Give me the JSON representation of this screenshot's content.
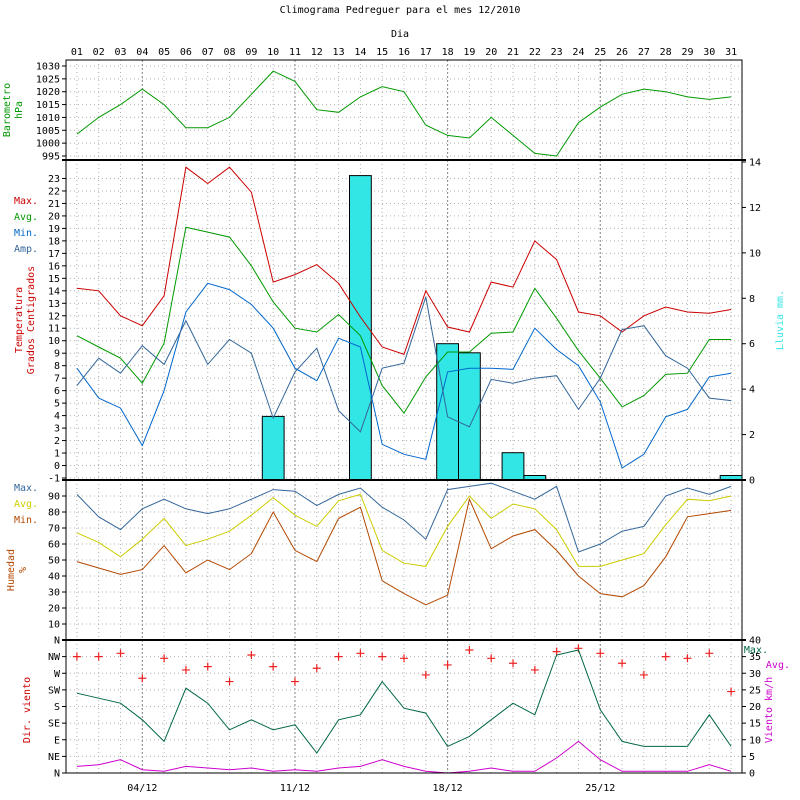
{
  "chart_data": {
    "type": "line",
    "title": "Climograma Pedreguer para el mes 12/2010",
    "day_axis_label": "Dia",
    "days": [
      "01",
      "02",
      "03",
      "04",
      "05",
      "06",
      "07",
      "08",
      "09",
      "10",
      "11",
      "12",
      "13",
      "14",
      "15",
      "16",
      "17",
      "18",
      "19",
      "20",
      "21",
      "22",
      "23",
      "24",
      "25",
      "26",
      "27",
      "28",
      "29",
      "30",
      "31"
    ],
    "date_ticks": [
      "04/12",
      "11/12",
      "18/12",
      "25/12"
    ],
    "colors": {
      "red": "#cc0000",
      "green": "#009900",
      "blue": "#0066cc",
      "steel": "#336699",
      "cyan": "#33e6e6",
      "olive": "#cccc00",
      "brown": "#b34700",
      "teal": "#006644",
      "magenta": "#cc00cc",
      "cross": "#ee2222"
    },
    "panels": {
      "barometer": {
        "ylabel": [
          "Barometro",
          "hPa"
        ],
        "ylim": [
          995,
          1030
        ],
        "ticks": [
          995,
          1000,
          1005,
          1010,
          1015,
          1020,
          1025,
          1030
        ],
        "series": [
          {
            "values": [
              1003.5,
              1010,
              1015,
              1021,
              1015,
              1006,
              1006,
              1010,
              1019,
              1028,
              1024,
              1013,
              1012,
              1018,
              1022,
              1020,
              1007,
              1003,
              1002,
              1010,
              1003,
              996,
              995,
              1008,
              1014,
              1019,
              1021,
              1020,
              1018,
              1017,
              1018
            ]
          }
        ]
      },
      "temperature": {
        "ylabel": [
          "Temperatura",
          "Grados Centigrados"
        ],
        "ylabel2": "Lluvia mm.",
        "ylim": [
          -1,
          24
        ],
        "ticks": [
          -1,
          0,
          1,
          2,
          3,
          4,
          5,
          6,
          7,
          8,
          9,
          10,
          11,
          12,
          13,
          14,
          15,
          16,
          17,
          18,
          19,
          20,
          21,
          22,
          23
        ],
        "rain_lim": [
          0,
          14
        ],
        "rain_ticks": [
          0,
          2,
          4,
          6,
          8,
          10,
          12,
          14
        ],
        "legend": [
          "Max.",
          "Avg.",
          "Min.",
          "Amp."
        ],
        "series": [
          {
            "name": "Max.",
            "values": [
              14.2,
              14,
              12,
              11.2,
              13.6,
              23.9,
              22.6,
              23.9,
              21.9,
              14.7,
              15.3,
              16.1,
              14.6,
              11.9,
              9.5,
              8.9,
              14,
              11.1,
              10.7,
              14.7,
              14.3,
              18,
              16.5,
              12.3,
              12,
              10.7,
              12,
              12.7,
              12.3,
              12.2,
              12.5
            ]
          },
          {
            "name": "Avg.",
            "values": [
              10.4,
              9.5,
              8.6,
              6.6,
              9.8,
              19.1,
              18.7,
              18.3,
              16,
              13.1,
              11,
              10.7,
              12.1,
              10.4,
              6.4,
              4.2,
              7.1,
              9.1,
              9.1,
              10.6,
              10.7,
              14.2,
              11.8,
              9.2,
              7,
              4.7,
              5.6,
              7.3,
              7.4,
              10.1,
              10.1
            ]
          },
          {
            "name": "Min.",
            "values": [
              7.8,
              5.4,
              4.6,
              1.6,
              6,
              12.3,
              14.6,
              14.1,
              12.9,
              11,
              7.8,
              6.8,
              10.2,
              9.5,
              1.7,
              0.9,
              0.5,
              7.5,
              7.8,
              7.8,
              7.7,
              11,
              9.3,
              8,
              5.1,
              -0.2,
              0.9,
              3.9,
              4.5,
              7.1,
              7.4
            ]
          },
          {
            "name": "Amp.",
            "values": [
              6.4,
              8.6,
              7.4,
              9.6,
              8.1,
              11.6,
              8.1,
              10.1,
              9,
              3.8,
              7.5,
              9.4,
              4.4,
              2.7,
              7.8,
              8.2,
              13.5,
              3.9,
              3.1,
              6.9,
              6.6,
              7,
              7.2,
              4.5,
              7,
              10.9,
              11.2,
              8.8,
              7.8,
              5.4,
              5.2
            ]
          }
        ],
        "rain": {
          "values": [
            0,
            0,
            0,
            0,
            0,
            0,
            0,
            0,
            0,
            2.8,
            0,
            0,
            0,
            13.4,
            0,
            0,
            0,
            6,
            5.6,
            0,
            1.2,
            0.2,
            0,
            0,
            0,
            0,
            0,
            0,
            0,
            0,
            0.2
          ]
        }
      },
      "humidity": {
        "ylabel": [
          "Humedad",
          "%"
        ],
        "ylim": [
          0,
          100
        ],
        "ticks": [
          10,
          20,
          30,
          40,
          50,
          60,
          70,
          80,
          90
        ],
        "legend": [
          "Max.",
          "Avg.",
          "Min."
        ],
        "series": [
          {
            "name": "Max.",
            "values": [
              91,
              77,
              69,
              82,
              88,
              82,
              79,
              82,
              88,
              94,
              93,
              84,
              91,
              95,
              83,
              75,
              63,
              94,
              96,
              98,
              93,
              88,
              96,
              55,
              60,
              68,
              71,
              90,
              95,
              91,
              96
            ]
          },
          {
            "name": "Avg.",
            "values": [
              67,
              61,
              52,
              63,
              76,
              59,
              63,
              68,
              78,
              89,
              78,
              71,
              87,
              91,
              56,
              48,
              46,
              71,
              90,
              76,
              85,
              82,
              69,
              46,
              46,
              50,
              54,
              72,
              88,
              87,
              90
            ]
          },
          {
            "name": "Min.",
            "values": [
              49,
              45,
              41,
              44,
              59,
              42,
              50,
              44,
              54,
              80,
              56,
              49,
              76,
              83,
              37,
              29,
              22,
              28,
              88,
              57,
              65,
              69,
              56,
              40,
              29,
              27,
              34,
              52,
              77,
              79,
              81
            ]
          }
        ]
      },
      "wind_dir": {
        "ylabel": "Dir. viento",
        "labels": [
          "N",
          "NE",
          "E",
          "SE",
          "S",
          "SW",
          "W",
          "NW",
          "N"
        ],
        "values": [
          7,
          7,
          7.2,
          5.7,
          6.9,
          6.2,
          6.4,
          5.5,
          7.1,
          6.4,
          5.5,
          6.3,
          7,
          7.2,
          7,
          6.9,
          5.9,
          6.5,
          7.4,
          6.9,
          6.6,
          6.2,
          7.3,
          7.5,
          7.2,
          6.6,
          5.9,
          7,
          6.9,
          7.2,
          4.9
        ]
      },
      "wind_speed": {
        "ylabel": "Viento km/h",
        "ylim": [
          0,
          40
        ],
        "ticks": [
          0,
          5,
          10,
          15,
          20,
          25,
          30,
          35,
          40
        ],
        "legend": [
          "Max.",
          "Avg."
        ],
        "series": [
          {
            "name": "Max.",
            "values": [
              24,
              22.5,
              21,
              16,
              9.5,
              25.5,
              21,
              13,
              16,
              13,
              14.5,
              6,
              16,
              17.5,
              27.5,
              19.5,
              18,
              8,
              11,
              16,
              21,
              17.5,
              35.5,
              37,
              19,
              9.5,
              8,
              8,
              8,
              17.5,
              8
            ]
          },
          {
            "name": "Avg.",
            "values": [
              2,
              2.5,
              4,
              1,
              0.5,
              2,
              1.5,
              1,
              1.5,
              0.5,
              1,
              0.5,
              1.5,
              2,
              4,
              2,
              0.5,
              0,
              0.5,
              1.5,
              0.5,
              0.5,
              4.5,
              9.5,
              4,
              0.5,
              0.5,
              0.5,
              0.5,
              2.5,
              0.5
            ]
          }
        ]
      }
    }
  }
}
